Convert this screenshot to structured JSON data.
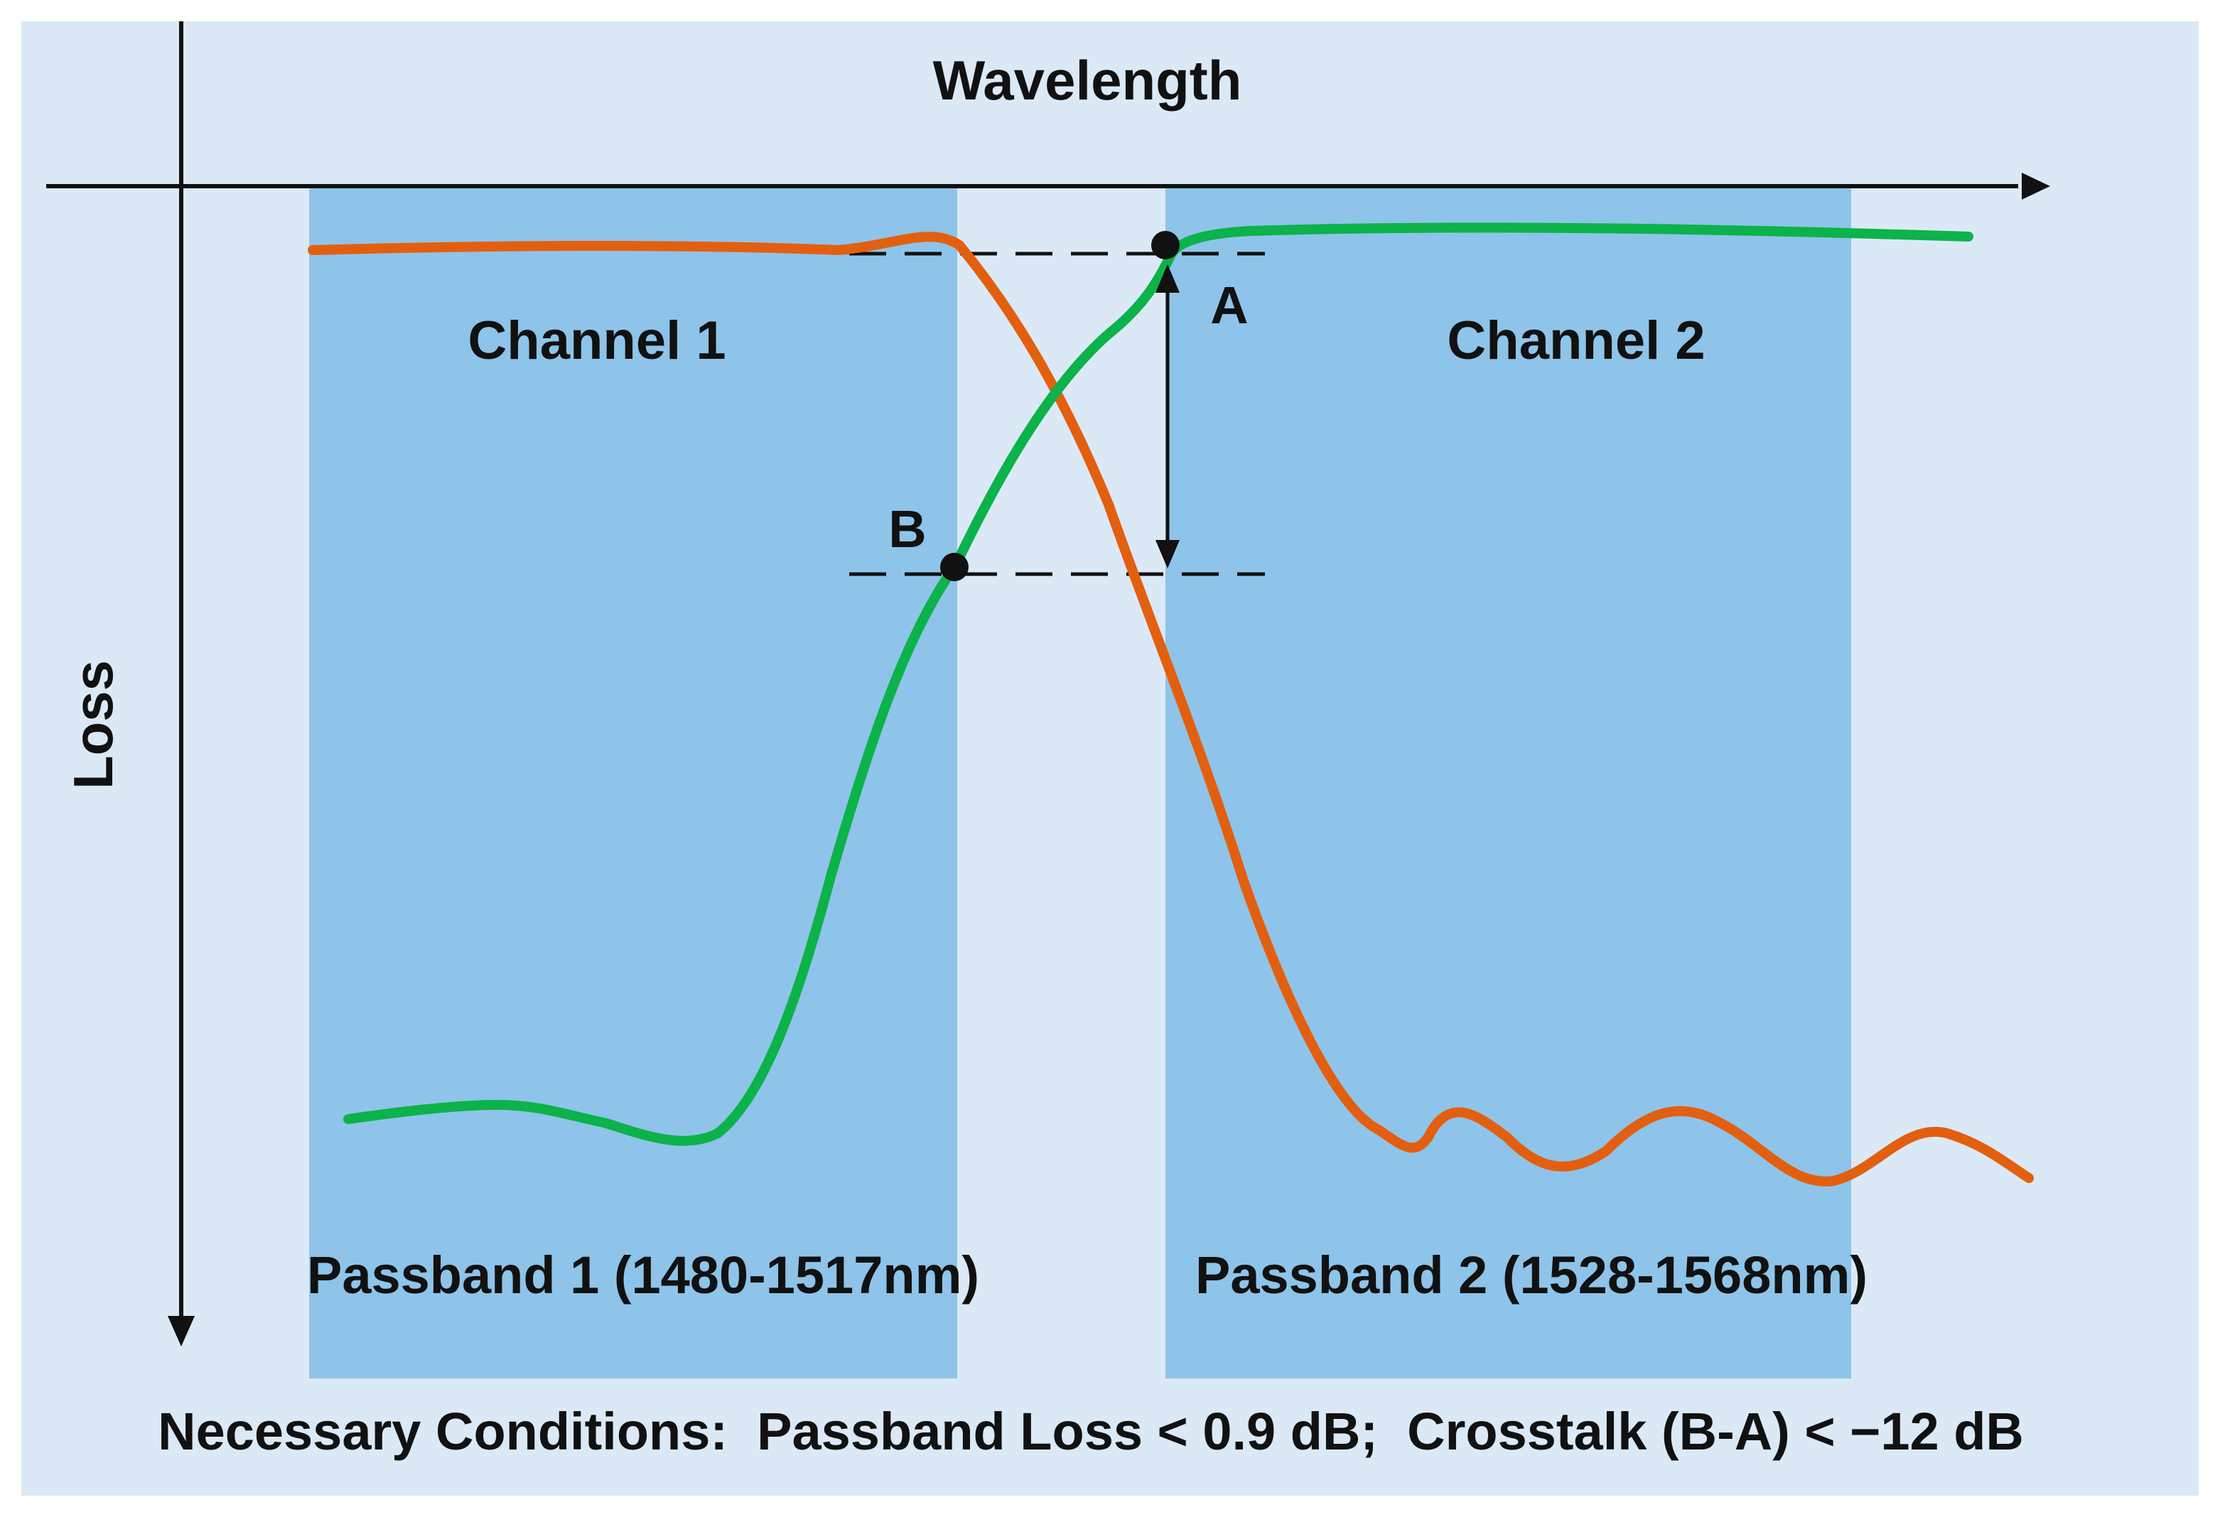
{
  "diagram": {
    "x_axis_label": "Wavelength",
    "y_axis_label": "Loss",
    "channel_1_label": "Channel 1",
    "channel_2_label": "Channel 2",
    "passband_1_label": "Passband 1 (1480-1517nm)",
    "passband_2_label": "Passband 2 (1528-1568nm)",
    "point_a_label": "A",
    "point_b_label": "B",
    "conditions_text": "Necessary Conditions:  Passband Loss < 0.9 dB;  Crosstalk (B-A) < −12 dB"
  },
  "colors": {
    "background": "#dbe9f6",
    "passband_fill": "#8ec4e9",
    "channel_1_curve": "#e35f10",
    "channel_2_curve": "#0cb24a",
    "axis": "#111111"
  }
}
